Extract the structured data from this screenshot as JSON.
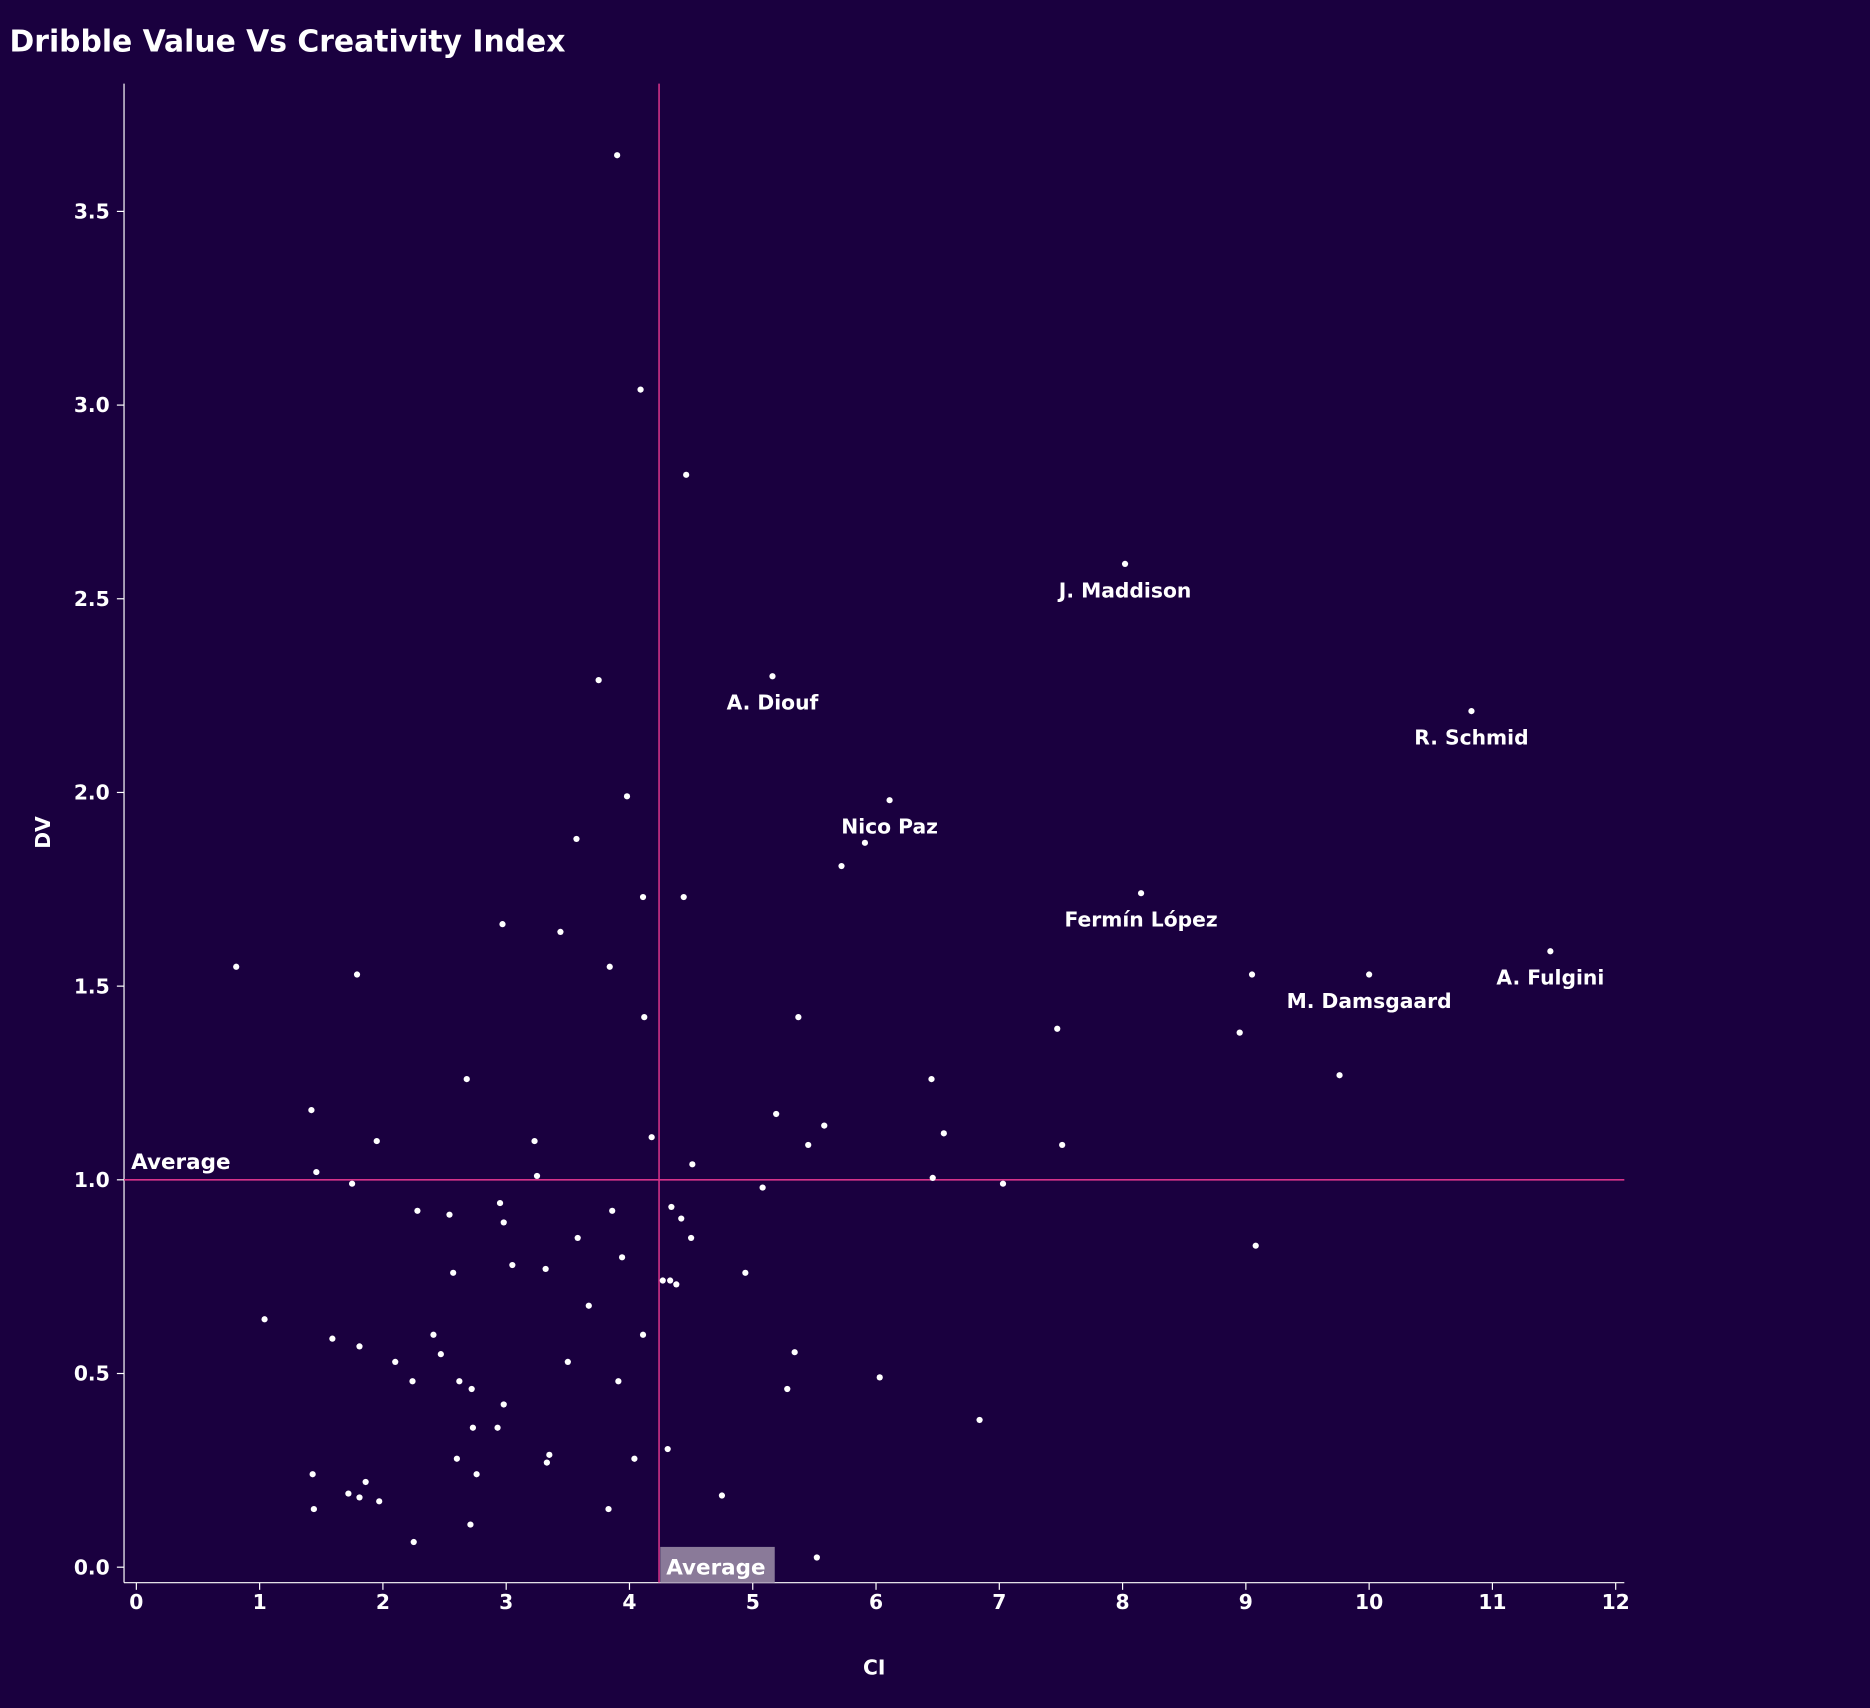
{
  "chart_data": {
    "type": "scatter",
    "title": "Dribble Value Vs Creativity Index",
    "xlabel": "CI",
    "ylabel": "DV",
    "xlim": [
      -0.1,
      12.07
    ],
    "ylim": [
      -0.04,
      3.83
    ],
    "xticks": [
      0,
      1,
      2,
      3,
      4,
      5,
      6,
      7,
      8,
      9,
      10,
      11,
      12
    ],
    "yticks": [
      "0.0",
      "0.5",
      "1.0",
      "1.5",
      "2.0",
      "2.5",
      "3.0",
      "3.5"
    ],
    "grid": false,
    "colors": {
      "background": "#1a003f",
      "points": "#ffffff",
      "average_line": "#d6338a",
      "average_box": "#8a7a99"
    },
    "averages": {
      "x": 4.24,
      "y": 1.0,
      "x_label": "Average",
      "y_label": "Average"
    },
    "points": [
      [
        3.9,
        3.645
      ],
      [
        4.09,
        3.04
      ],
      [
        4.46,
        2.82
      ],
      [
        8.02,
        2.59
      ],
      [
        5.16,
        2.3
      ],
      [
        3.75,
        2.29
      ],
      [
        10.83,
        2.21
      ],
      [
        3.98,
        1.99
      ],
      [
        6.11,
        1.98
      ],
      [
        3.57,
        1.88
      ],
      [
        5.91,
        1.87
      ],
      [
        5.72,
        1.81
      ],
      [
        4.11,
        1.73
      ],
      [
        4.44,
        1.73
      ],
      [
        8.15,
        1.74
      ],
      [
        2.97,
        1.66
      ],
      [
        3.44,
        1.64
      ],
      [
        0.81,
        1.55
      ],
      [
        1.79,
        1.53
      ],
      [
        3.84,
        1.55
      ],
      [
        9.05,
        1.53
      ],
      [
        10.0,
        1.53
      ],
      [
        11.47,
        1.59
      ],
      [
        4.12,
        1.42
      ],
      [
        5.37,
        1.42
      ],
      [
        7.47,
        1.39
      ],
      [
        8.95,
        1.38
      ],
      [
        2.68,
        1.26
      ],
      [
        6.45,
        1.26
      ],
      [
        9.76,
        1.27
      ],
      [
        1.42,
        1.18
      ],
      [
        5.19,
        1.17
      ],
      [
        5.58,
        1.14
      ],
      [
        6.55,
        1.12
      ],
      [
        4.18,
        1.11
      ],
      [
        1.95,
        1.1
      ],
      [
        3.23,
        1.1
      ],
      [
        5.45,
        1.09
      ],
      [
        7.51,
        1.09
      ],
      [
        4.51,
        1.04
      ],
      [
        1.46,
        1.02
      ],
      [
        3.25,
        1.01
      ],
      [
        6.46,
        1.005
      ],
      [
        7.03,
        0.99
      ],
      [
        1.75,
        0.99
      ],
      [
        5.08,
        0.98
      ],
      [
        2.95,
        0.94
      ],
      [
        4.34,
        0.93
      ],
      [
        2.28,
        0.92
      ],
      [
        2.54,
        0.91
      ],
      [
        3.86,
        0.92
      ],
      [
        2.98,
        0.89
      ],
      [
        4.42,
        0.9
      ],
      [
        4.5,
        0.85
      ],
      [
        3.58,
        0.85
      ],
      [
        9.08,
        0.83
      ],
      [
        3.94,
        0.8
      ],
      [
        3.05,
        0.78
      ],
      [
        3.32,
        0.77
      ],
      [
        2.57,
        0.76
      ],
      [
        4.94,
        0.76
      ],
      [
        4.27,
        0.74
      ],
      [
        4.33,
        0.74
      ],
      [
        4.38,
        0.73
      ],
      [
        3.67,
        0.675
      ],
      [
        1.04,
        0.64
      ],
      [
        2.41,
        0.6
      ],
      [
        1.59,
        0.59
      ],
      [
        4.11,
        0.6
      ],
      [
        1.81,
        0.57
      ],
      [
        5.34,
        0.555
      ],
      [
        2.47,
        0.55
      ],
      [
        2.1,
        0.53
      ],
      [
        3.5,
        0.53
      ],
      [
        6.03,
        0.49
      ],
      [
        2.24,
        0.48
      ],
      [
        2.62,
        0.48
      ],
      [
        3.91,
        0.48
      ],
      [
        2.72,
        0.46
      ],
      [
        5.28,
        0.46
      ],
      [
        2.98,
        0.42
      ],
      [
        6.84,
        0.38
      ],
      [
        2.73,
        0.36
      ],
      [
        2.93,
        0.36
      ],
      [
        4.31,
        0.305
      ],
      [
        3.35,
        0.29
      ],
      [
        2.6,
        0.28
      ],
      [
        4.04,
        0.28
      ],
      [
        3.33,
        0.27
      ],
      [
        1.43,
        0.24
      ],
      [
        2.76,
        0.24
      ],
      [
        1.86,
        0.22
      ],
      [
        1.72,
        0.19
      ],
      [
        1.81,
        0.18
      ],
      [
        4.75,
        0.185
      ],
      [
        1.97,
        0.17
      ],
      [
        1.44,
        0.15
      ],
      [
        3.83,
        0.15
      ],
      [
        2.71,
        0.11
      ],
      [
        2.25,
        0.065
      ],
      [
        5.52,
        0.025
      ]
    ],
    "annotations": [
      {
        "label": "J. Maddison",
        "x": 8.02,
        "y": 2.59
      },
      {
        "label": "A. Diouf",
        "x": 5.16,
        "y": 2.3
      },
      {
        "label": "R. Schmid",
        "x": 10.83,
        "y": 2.21
      },
      {
        "label": "Nico Paz",
        "x": 6.11,
        "y": 1.98
      },
      {
        "label": "Fermín López",
        "x": 8.15,
        "y": 1.74
      },
      {
        "label": "M. Damsgaard",
        "x": 10.0,
        "y": 1.53
      },
      {
        "label": "A. Fulgini",
        "x": 11.47,
        "y": 1.59
      }
    ]
  }
}
